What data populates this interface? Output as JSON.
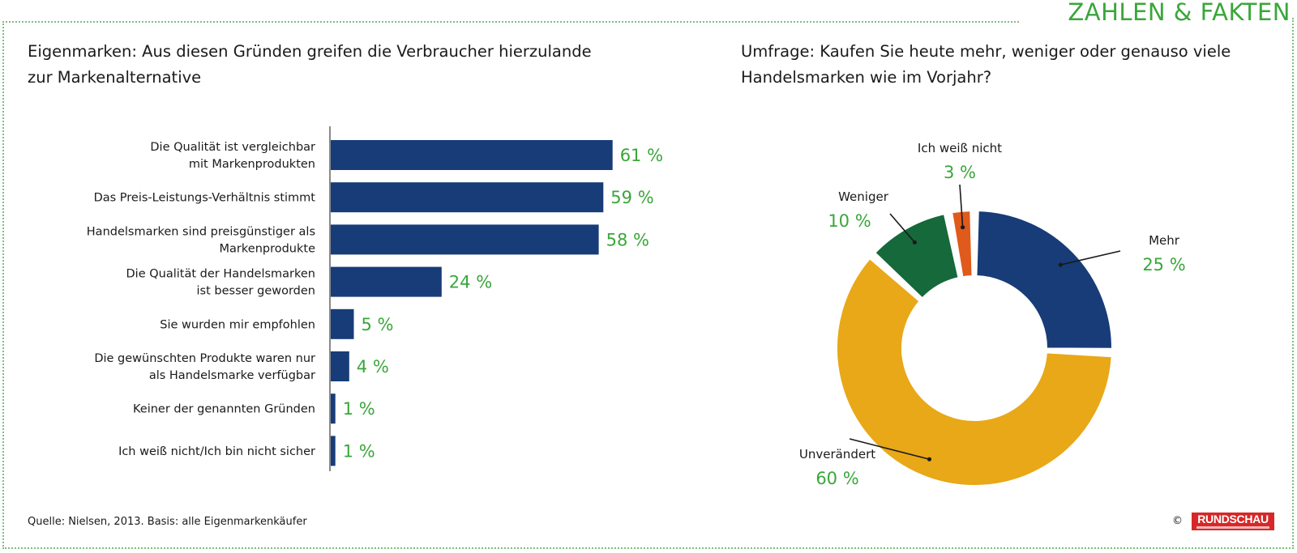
{
  "header": {
    "section_tag": "ZAHLEN & FAKTEN"
  },
  "left_chart_title": "Eigenmarken: Aus diesen Gründen greifen die Verbraucher hierzulande zur Markenalternative",
  "right_chart_title": "Umfrage: Kaufen Sie heute mehr, weniger oder genauso viele Handelsmarken wie im Vorjahr?",
  "footer": {
    "source": "Quelle: Nielsen, 2013. Basis: alle Eigenmarkenkäufer",
    "copyright": "©",
    "logo_text": "RUNDSCHAU"
  },
  "colors": {
    "accent_green": "#3aa63a",
    "bar_blue": "#173c78",
    "frame_green": "#7cc07c"
  },
  "chart_data": [
    {
      "type": "bar",
      "orientation": "horizontal",
      "title": "Eigenmarken: Aus diesen Gründen greifen die Verbraucher hierzulande zur Markenalternative",
      "categories": [
        [
          "Die Qualität ist vergleichbar",
          "mit Markenprodukten"
        ],
        [
          "Das Preis-Leistungs-Verhältnis stimmt"
        ],
        [
          "Handelsmarken sind preisgünstiger als",
          "Markenprodukte"
        ],
        [
          "Die Qualität der Handelsmarken",
          "ist besser geworden"
        ],
        [
          "Sie wurden mir empfohlen"
        ],
        [
          "Die gewünschten Produkte waren nur",
          "als Handelsmarke verfügbar"
        ],
        [
          "Keiner der genannten Gründen"
        ],
        [
          "Ich weiß nicht/Ich bin nicht sicher"
        ]
      ],
      "values": [
        61,
        59,
        58,
        24,
        5,
        4,
        1,
        1
      ],
      "value_labels": [
        "61 %",
        "59 %",
        "58 %",
        "24 %",
        "5 %",
        "4 %",
        "1 %",
        "1 %"
      ],
      "unit": "%",
      "xlim": [
        0,
        100
      ],
      "grid": false,
      "color": "#173c78"
    },
    {
      "type": "pie",
      "variant": "donut",
      "title": "Umfrage: Kaufen Sie heute mehr, weniger oder genauso viele Handelsmarken wie im Vorjahr?",
      "slices": [
        {
          "label": "Mehr",
          "value": 25,
          "value_label": "25 %",
          "color": "#173c78"
        },
        {
          "label": "Unverändert",
          "value": 60,
          "value_label": "60 %",
          "color": "#e8a817"
        },
        {
          "label": "Weniger",
          "value": 10,
          "value_label": "10 %",
          "color": "#15693a"
        },
        {
          "label": "Ich weiß nicht",
          "value": 3,
          "value_label": "3 %",
          "color": "#e05a1c"
        }
      ],
      "unit": "%",
      "legend": "none"
    }
  ]
}
